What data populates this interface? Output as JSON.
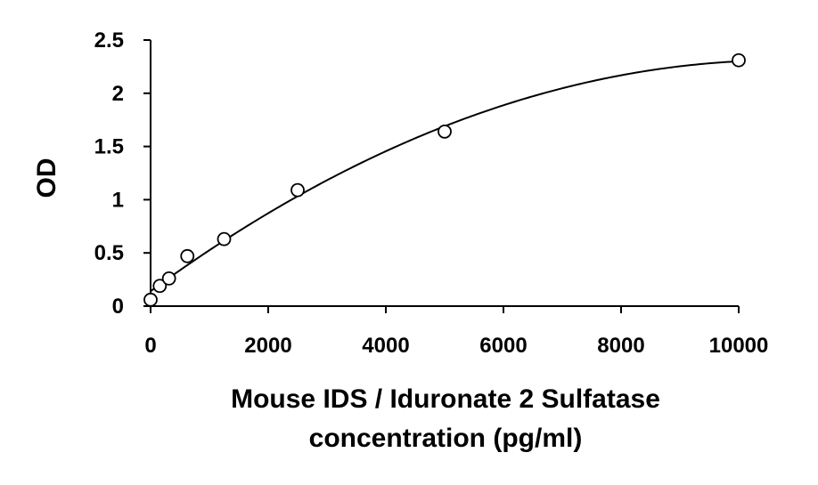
{
  "chart_data": {
    "type": "scatter",
    "title": "",
    "xlabel_lines": [
      "Mouse IDS / Iduronate 2 Sulfatase",
      "concentration (pg/ml)"
    ],
    "ylabel": "OD",
    "xlim": [
      0,
      10000
    ],
    "ylim": [
      0,
      2.5
    ],
    "x_ticks": [
      0,
      2000,
      4000,
      6000,
      8000,
      10000
    ],
    "x_tick_labels": [
      "0",
      "2000",
      "4000",
      "6000",
      "8000",
      "10000"
    ],
    "y_ticks": [
      0,
      0.5,
      1,
      1.5,
      2,
      2.5
    ],
    "y_tick_labels": [
      "0",
      "0.5",
      "1",
      "1.5",
      "2",
      "2.5"
    ],
    "grid": false,
    "legend": "none",
    "points": [
      {
        "x": 0,
        "y": 0.06
      },
      {
        "x": 156,
        "y": 0.19
      },
      {
        "x": 313,
        "y": 0.26
      },
      {
        "x": 625,
        "y": 0.47
      },
      {
        "x": 1250,
        "y": 0.63
      },
      {
        "x": 2500,
        "y": 1.09
      },
      {
        "x": 5000,
        "y": 1.64
      },
      {
        "x": 10000,
        "y": 2.31
      }
    ],
    "fit_curve": {
      "type": "polynomial-2",
      "coefficients": [
        0.14,
        0.000404,
        -1.88e-08
      ]
    },
    "colors": {
      "axis": "#000000",
      "marker_stroke": "#000000",
      "marker_fill": "#ffffff",
      "curve": "#000000"
    }
  }
}
